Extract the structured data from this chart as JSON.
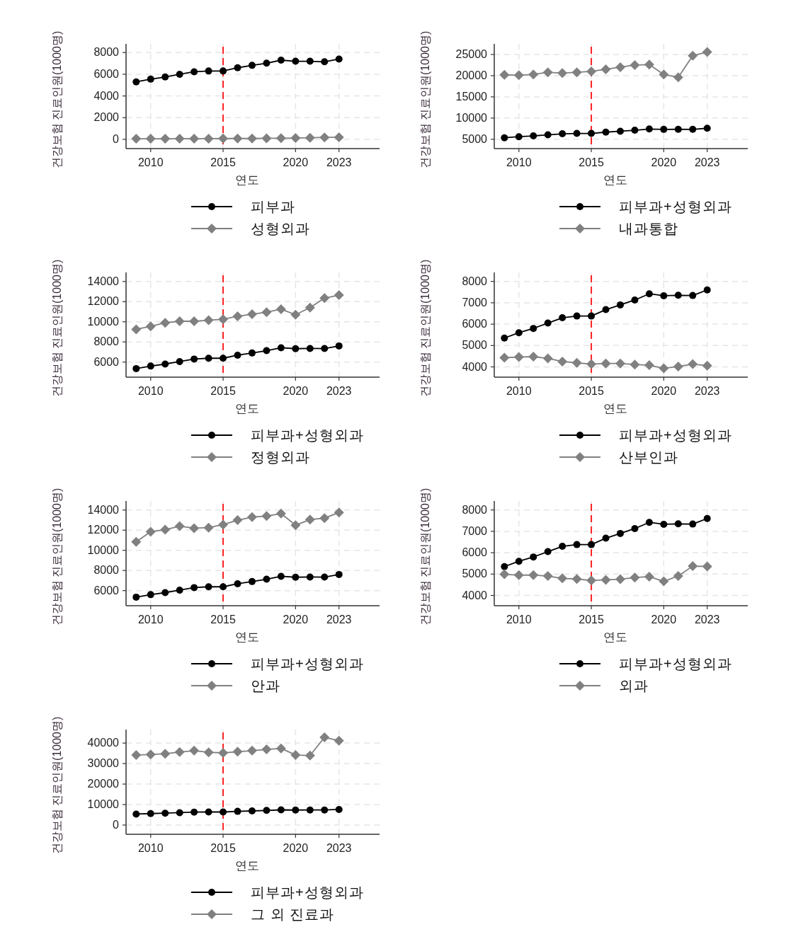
{
  "chart_data": [
    {
      "type": "line",
      "xlabel": "연도",
      "ylabel": "건강보험 진료인원(1000명)",
      "x": [
        2009,
        2010,
        2011,
        2012,
        2013,
        2014,
        2015,
        2016,
        2017,
        2018,
        2019,
        2020,
        2021,
        2022,
        2023
      ],
      "xlim": [
        2008.3,
        2025.8
      ],
      "xticks": [
        2010,
        2015,
        2020,
        2023
      ],
      "ylim": [
        -850,
        8800
      ],
      "yticks": [
        0,
        2000,
        4000,
        6000,
        8000
      ],
      "grid": true,
      "legend": "bottom",
      "line_style": "solid",
      "ref_lines": [
        {
          "axis": "x",
          "value": 2015,
          "color": "#ff2020",
          "line_style": "dashed"
        }
      ],
      "series": [
        {
          "name": "피부과",
          "color": "#000000",
          "marker": "circle",
          "values": [
            5300,
            5550,
            5750,
            6000,
            6230,
            6300,
            6300,
            6600,
            6820,
            7020,
            7300,
            7200,
            7200,
            7150,
            7400
          ]
        },
        {
          "name": "성형외과",
          "color": "#808080",
          "marker": "diamond",
          "values": [
            60,
            60,
            60,
            70,
            70,
            70,
            80,
            80,
            80,
            100,
            110,
            120,
            150,
            180,
            200
          ]
        }
      ]
    },
    {
      "type": "line",
      "xlabel": "연도",
      "ylabel": "건강보험 진료인원(1000명)",
      "x": [
        2009,
        2010,
        2011,
        2012,
        2013,
        2014,
        2015,
        2016,
        2017,
        2018,
        2019,
        2020,
        2021,
        2022,
        2023
      ],
      "xlim": [
        2008.3,
        2025.8
      ],
      "xticks": [
        2010,
        2015,
        2020,
        2023
      ],
      "ylim": [
        2800,
        27500
      ],
      "yticks": [
        5000,
        10000,
        15000,
        20000,
        25000
      ],
      "grid": true,
      "legend": "bottom",
      "line_style": "solid",
      "ref_lines": [
        {
          "axis": "x",
          "value": 2015,
          "color": "#ff2020",
          "line_style": "dashed"
        }
      ],
      "series": [
        {
          "name": "피부과+성형외과",
          "color": "#000000",
          "marker": "circle",
          "values": [
            5350,
            5600,
            5800,
            6050,
            6300,
            6380,
            6380,
            6680,
            6900,
            7130,
            7420,
            7330,
            7350,
            7340,
            7600
          ]
        },
        {
          "name": "내과통합",
          "color": "#808080",
          "marker": "diamond",
          "values": [
            20200,
            20100,
            20300,
            20800,
            20600,
            20800,
            21000,
            21500,
            22000,
            22500,
            22600,
            20300,
            19600,
            24700,
            25600
          ]
        }
      ]
    },
    {
      "type": "line",
      "xlabel": "연도",
      "ylabel": "건강보험 진료인원(1000명)",
      "x": [
        2009,
        2010,
        2011,
        2012,
        2013,
        2014,
        2015,
        2016,
        2017,
        2018,
        2019,
        2020,
        2021,
        2022,
        2023
      ],
      "xlim": [
        2008.3,
        2025.8
      ],
      "xticks": [
        2010,
        2015,
        2020,
        2023
      ],
      "ylim": [
        4500,
        14900
      ],
      "yticks": [
        6000,
        8000,
        10000,
        12000,
        14000
      ],
      "grid": true,
      "legend": "bottom",
      "line_style": "solid",
      "ref_lines": [
        {
          "axis": "x",
          "value": 2015,
          "color": "#ff2020",
          "line_style": "dashed"
        }
      ],
      "series": [
        {
          "name": "피부과+성형외과",
          "color": "#000000",
          "marker": "circle",
          "values": [
            5350,
            5600,
            5800,
            6050,
            6300,
            6380,
            6380,
            6680,
            6900,
            7130,
            7420,
            7330,
            7350,
            7340,
            7600
          ]
        },
        {
          "name": "정형외과",
          "color": "#808080",
          "marker": "diamond",
          "values": [
            9250,
            9550,
            9900,
            10050,
            10050,
            10150,
            10250,
            10550,
            10750,
            10950,
            11250,
            10700,
            11400,
            12350,
            12650
          ]
        }
      ]
    },
    {
      "type": "line",
      "xlabel": "연도",
      "ylabel": "건강보험 진료인원(1000명)",
      "x": [
        2009,
        2010,
        2011,
        2012,
        2013,
        2014,
        2015,
        2016,
        2017,
        2018,
        2019,
        2020,
        2021,
        2022,
        2023
      ],
      "xlim": [
        2008.3,
        2025.8
      ],
      "xticks": [
        2010,
        2015,
        2020,
        2023
      ],
      "ylim": [
        3520,
        8420
      ],
      "yticks": [
        4000,
        5000,
        6000,
        7000,
        8000
      ],
      "grid": true,
      "legend": "bottom",
      "line_style": "solid",
      "ref_lines": [
        {
          "axis": "x",
          "value": 2015,
          "color": "#ff2020",
          "line_style": "dashed"
        }
      ],
      "series": [
        {
          "name": "피부과+성형외과",
          "color": "#000000",
          "marker": "circle",
          "values": [
            5350,
            5600,
            5800,
            6050,
            6300,
            6380,
            6380,
            6680,
            6900,
            7130,
            7420,
            7330,
            7350,
            7340,
            7600
          ]
        },
        {
          "name": "산부인과",
          "color": "#808080",
          "marker": "diamond",
          "values": [
            4430,
            4460,
            4480,
            4400,
            4250,
            4190,
            4130,
            4160,
            4160,
            4110,
            4080,
            3930,
            4020,
            4130,
            4060
          ]
        }
      ]
    },
    {
      "type": "line",
      "xlabel": "연도",
      "ylabel": "건강보험 진료인원(1000명)",
      "x": [
        2009,
        2010,
        2011,
        2012,
        2013,
        2014,
        2015,
        2016,
        2017,
        2018,
        2019,
        2020,
        2021,
        2022,
        2023
      ],
      "xlim": [
        2008.3,
        2025.8
      ],
      "xticks": [
        2010,
        2015,
        2020,
        2023
      ],
      "ylim": [
        4500,
        14900
      ],
      "yticks": [
        6000,
        8000,
        10000,
        12000,
        14000
      ],
      "grid": true,
      "legend": "bottom",
      "line_style": "solid",
      "ref_lines": [
        {
          "axis": "x",
          "value": 2015,
          "color": "#ff2020",
          "line_style": "dashed"
        }
      ],
      "series": [
        {
          "name": "피부과+성형외과",
          "color": "#000000",
          "marker": "circle",
          "values": [
            5350,
            5600,
            5800,
            6050,
            6300,
            6380,
            6380,
            6680,
            6900,
            7130,
            7420,
            7330,
            7350,
            7340,
            7600
          ]
        },
        {
          "name": "안과",
          "color": "#808080",
          "marker": "diamond",
          "values": [
            10850,
            11850,
            12050,
            12400,
            12200,
            12250,
            12550,
            13000,
            13300,
            13400,
            13650,
            12500,
            13050,
            13200,
            13750
          ]
        }
      ]
    },
    {
      "type": "line",
      "xlabel": "연도",
      "ylabel": "건강보험 진료인원(1000명)",
      "x": [
        2009,
        2010,
        2011,
        2012,
        2013,
        2014,
        2015,
        2016,
        2017,
        2018,
        2019,
        2020,
        2021,
        2022,
        2023
      ],
      "xlim": [
        2008.3,
        2025.8
      ],
      "xticks": [
        2010,
        2015,
        2020,
        2023
      ],
      "ylim": [
        3520,
        8420
      ],
      "yticks": [
        4000,
        5000,
        6000,
        7000,
        8000
      ],
      "grid": true,
      "legend": "bottom",
      "line_style": "solid",
      "ref_lines": [
        {
          "axis": "x",
          "value": 2015,
          "color": "#ff2020",
          "line_style": "dashed"
        }
      ],
      "series": [
        {
          "name": "피부과+성형외과",
          "color": "#000000",
          "marker": "circle",
          "values": [
            5350,
            5600,
            5800,
            6050,
            6300,
            6380,
            6380,
            6680,
            6900,
            7130,
            7420,
            7330,
            7350,
            7340,
            7600
          ]
        },
        {
          "name": "외과",
          "color": "#808080",
          "marker": "diamond",
          "values": [
            4990,
            4950,
            4950,
            4910,
            4800,
            4770,
            4700,
            4730,
            4760,
            4840,
            4880,
            4660,
            4910,
            5370,
            5360
          ]
        }
      ]
    },
    {
      "type": "line",
      "xlabel": "연도",
      "ylabel": "건강보험 진료인원(1000명)",
      "x": [
        2009,
        2010,
        2011,
        2012,
        2013,
        2014,
        2015,
        2016,
        2017,
        2018,
        2019,
        2020,
        2021,
        2022,
        2023
      ],
      "xlim": [
        2008.3,
        2025.8
      ],
      "xticks": [
        2010,
        2015,
        2020,
        2023
      ],
      "ylim": [
        -4500,
        46600
      ],
      "yticks": [
        0,
        10000,
        20000,
        30000,
        40000
      ],
      "grid": true,
      "legend": "bottom",
      "line_style": "solid",
      "ref_lines": [
        {
          "axis": "x",
          "value": 2015,
          "color": "#ff2020",
          "line_style": "dashed"
        }
      ],
      "series": [
        {
          "name": "피부과+성형외과",
          "color": "#000000",
          "marker": "circle",
          "values": [
            5350,
            5600,
            5800,
            6050,
            6300,
            6380,
            6380,
            6680,
            6900,
            7130,
            7420,
            7330,
            7350,
            7340,
            7600
          ]
        },
        {
          "name": "그 외 진료과",
          "color": "#808080",
          "marker": "diamond",
          "values": [
            34200,
            34400,
            34800,
            35600,
            36300,
            35500,
            35200,
            35800,
            36300,
            36900,
            37400,
            34200,
            33900,
            42800,
            41200
          ]
        }
      ]
    }
  ]
}
